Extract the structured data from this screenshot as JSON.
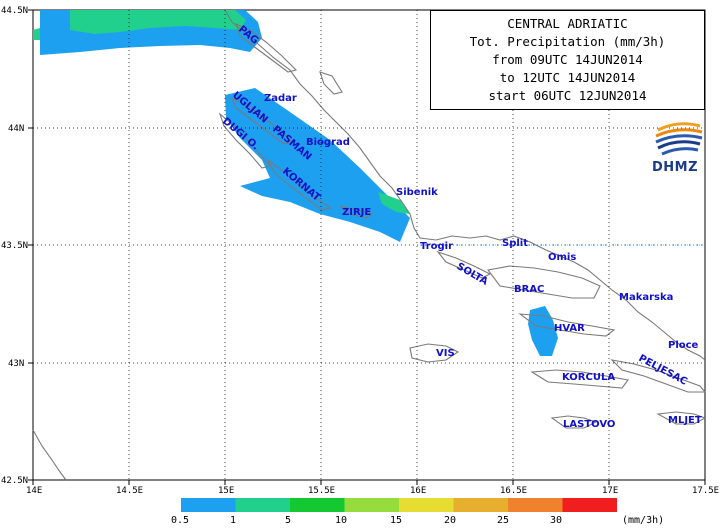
{
  "title_lines": [
    "CENTRAL ADRIATIC",
    "Tot. Precipitation (mm/3h)",
    "from 09UTC 14JUN2014",
    "to 12UTC 14JUN2014",
    "start 06UTC 12JUN2014"
  ],
  "logo": {
    "text": "DHMZ",
    "icon": "dhmz-swirl-logo"
  },
  "axes": {
    "lat_labels": [
      "44.5N",
      "44N",
      "43.5N",
      "43N",
      "42.5N"
    ],
    "lon_labels": [
      "14E",
      "14.5E",
      "15E",
      "15.5E",
      "16E",
      "16.5E",
      "17E",
      "17.5E"
    ]
  },
  "places": [
    "PAG",
    "Zadar",
    "UGLJAN",
    "PASMAN",
    "Biograd",
    "DUGI O.",
    "KORNAT",
    "Sibenik",
    "ZIRJE",
    "Trogir",
    "Split",
    "Omis",
    "SOLTA",
    "BRAC",
    "Makarska",
    "HVAR",
    "Ploce",
    "VIS",
    "KORCULA",
    "PELJESAC",
    "LASTOVO",
    "MLJET"
  ],
  "legend": {
    "unit": "(mm/3h)",
    "labels": [
      "0.5",
      "1",
      "5",
      "10",
      "15",
      "20",
      "25",
      "30"
    ],
    "colors": [
      "#1ea0f0",
      "#20d08c",
      "#14c832",
      "#96dc3c",
      "#e6dc32",
      "#e6af2d",
      "#f0822d",
      "#f01e1e"
    ]
  },
  "colors": {
    "precip_light": "#1ea0f0",
    "precip_moderate": "#20d08c",
    "coast": "#7a7a7a",
    "label": "#1010c8"
  }
}
